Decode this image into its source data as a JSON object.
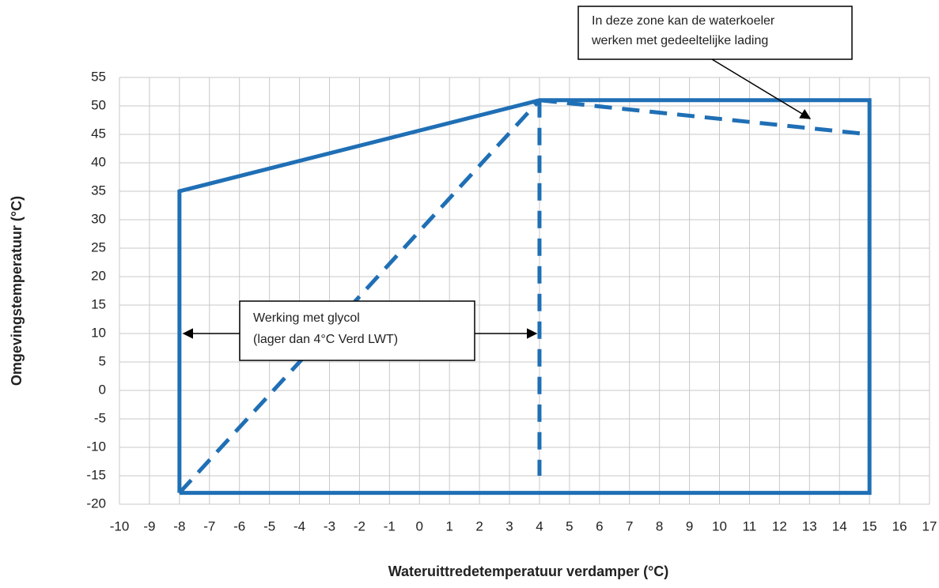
{
  "chart_data": {
    "type": "line",
    "x_label": "Wateruittredetemperatuur verdamper (°C)",
    "y_label": "Omgevingstemperatuur (°C)",
    "xlim": [
      -10,
      17
    ],
    "ylim": [
      -20,
      55
    ],
    "xticks": [
      -10,
      -9,
      -8,
      -7,
      -6,
      -5,
      -4,
      -3,
      -2,
      -1,
      0,
      1,
      2,
      3,
      4,
      5,
      6,
      7,
      8,
      9,
      10,
      11,
      12,
      13,
      14,
      15,
      16,
      17
    ],
    "yticks": [
      -20,
      -15,
      -10,
      -5,
      0,
      5,
      10,
      15,
      20,
      25,
      30,
      35,
      40,
      45,
      50,
      55
    ],
    "grid": true,
    "series": [
      {
        "color": "#1f6fb5",
        "dashed": false,
        "x": [
          -8,
          -8,
          4,
          15,
          15,
          -8
        ],
        "values": [
          -18,
          35,
          51,
          51,
          -18,
          -18
        ]
      },
      {
        "color": "#1f6fb5",
        "dashed": true,
        "x": [
          -8,
          4
        ],
        "values": [
          -18,
          51
        ]
      },
      {
        "color": "#1f6fb5",
        "dashed": true,
        "x": [
          4,
          4
        ],
        "values": [
          51,
          -15
        ]
      },
      {
        "color": "#1f6fb5",
        "dashed": true,
        "x": [
          4,
          15
        ],
        "values": [
          51,
          45
        ]
      }
    ],
    "annotations": [
      {
        "lines": [
          "In deze zone kan de waterkoeler",
          "werken met gedeeltelijke lading"
        ]
      },
      {
        "lines": [
          "Werking met glycol",
          "(lager dan 4°C Verd LWT)"
        ]
      }
    ]
  }
}
